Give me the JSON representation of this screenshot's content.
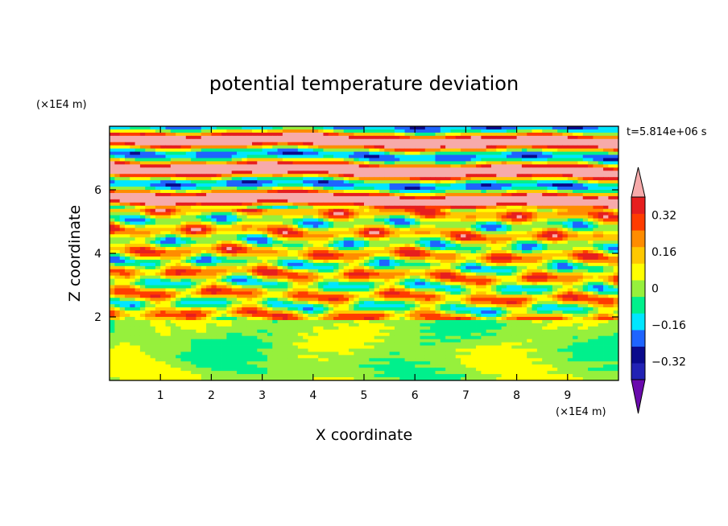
{
  "chart_data": {
    "type": "heatmap",
    "title": "potential temperature deviation",
    "xlabel": "X coordinate",
    "ylabel": "Z coordinate",
    "x_unit": "(×1E4 m)",
    "y_unit": "(×1E4 m)",
    "time_label": "t=5.814e+06 s",
    "xlim": [
      0,
      10
    ],
    "ylim": [
      0,
      8
    ],
    "x_ticks": [
      1,
      2,
      3,
      4,
      5,
      6,
      7,
      8,
      9
    ],
    "y_ticks": [
      2,
      4,
      6
    ],
    "x_tick_labels": [
      "1",
      "2",
      "3",
      "4",
      "5",
      "6",
      "7",
      "8",
      "9"
    ],
    "y_tick_labels": [
      "2",
      "4",
      "6"
    ],
    "colorbar": {
      "levels": [
        -0.48,
        -0.4,
        -0.32,
        -0.24,
        -0.16,
        -0.08,
        0,
        0.08,
        0.16,
        0.24,
        0.32,
        0.4,
        0.48
      ],
      "colors": [
        "#6a0aad",
        "#2222b4",
        "#0a0a8c",
        "#1e64ff",
        "#00e6ff",
        "#00f08c",
        "#96f03c",
        "#ffff00",
        "#ffc800",
        "#ff8c00",
        "#ff3c00",
        "#e61e1e",
        "#f7aaaa"
      ],
      "label_values": [
        0.32,
        0.16,
        0,
        -0.16,
        -0.32
      ],
      "labels": [
        "0.32",
        "0.16",
        "0",
        "−0.16",
        "−0.32"
      ],
      "extend": "both"
    },
    "field_description_bands": [
      {
        "z_range": [
          0,
          2
        ],
        "dominant_value": -0.04
      },
      {
        "z_range": [
          2,
          5.5
        ],
        "dominant_value": 0.1
      },
      {
        "z_range": [
          5.5,
          8
        ],
        "dominant_value": 0.45
      }
    ]
  }
}
